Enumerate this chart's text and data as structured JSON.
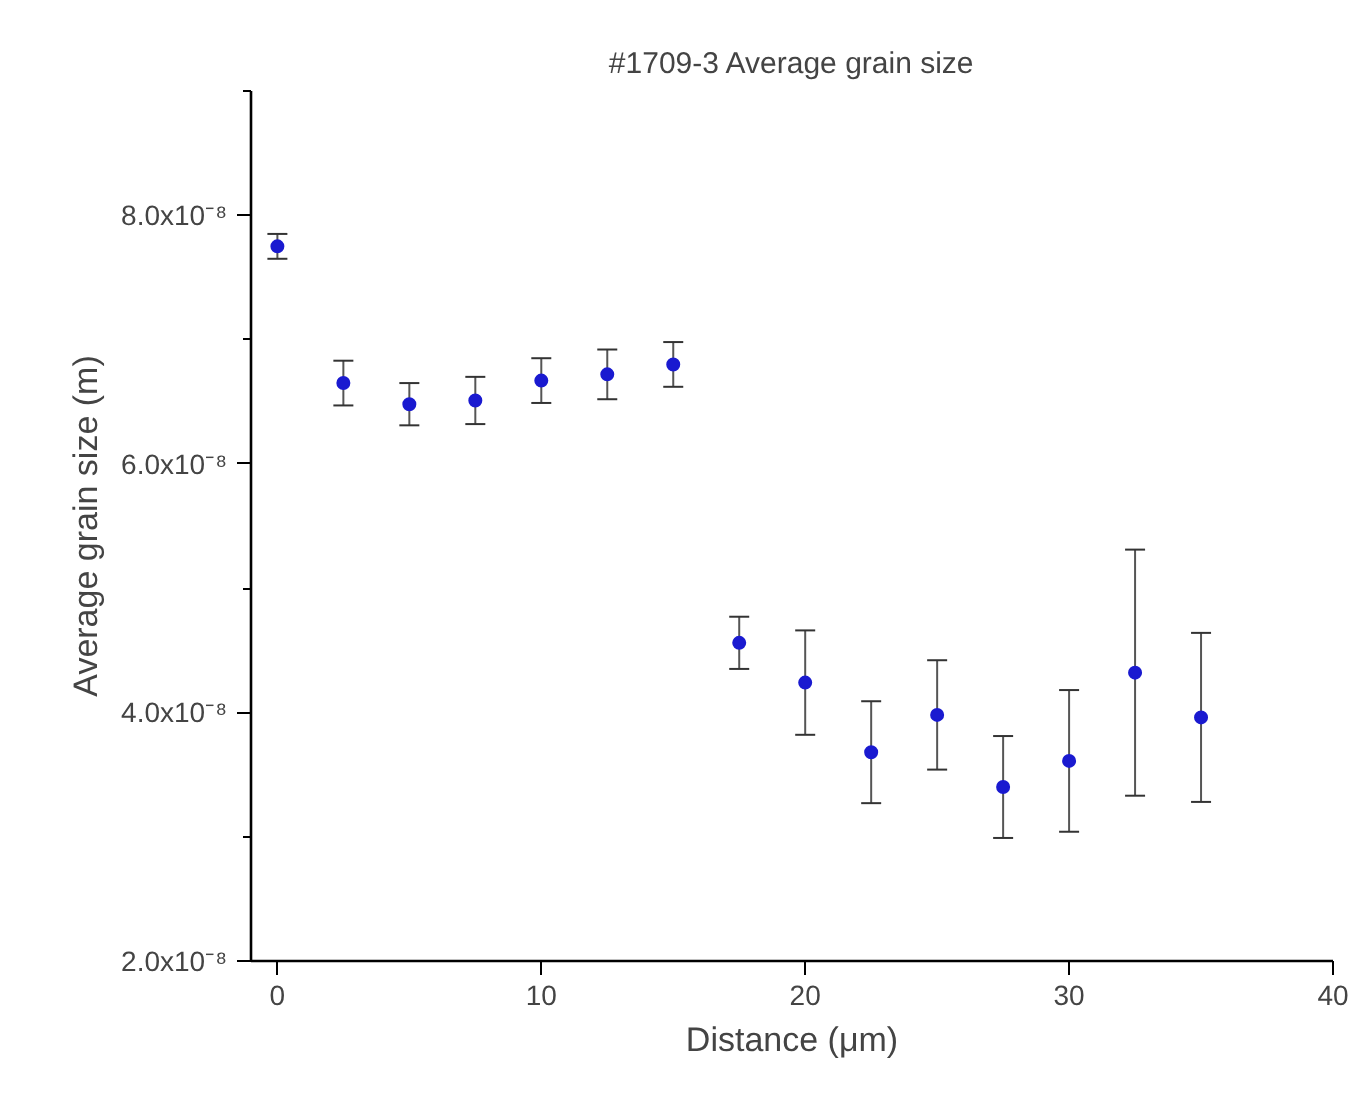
{
  "chart_data": {
    "type": "scatter",
    "title": "#1709-3 Average grain size",
    "xlabel": "Distance (μm)",
    "ylabel": "Average grain size (m)",
    "x": [
      0,
      2.5,
      5,
      7.5,
      10,
      12.5,
      15,
      17.5,
      20,
      22.5,
      25,
      27.5,
      30,
      32.5,
      35
    ],
    "series": [
      {
        "color": "#1a1ad0",
        "values": [
          7.75e-08,
          6.65e-08,
          6.48e-08,
          6.51e-08,
          6.67e-08,
          6.72e-08,
          6.8e-08,
          4.56e-08,
          4.24e-08,
          3.68e-08,
          3.98e-08,
          3.4e-08,
          3.61e-08,
          4.32e-08,
          3.96e-08
        ],
        "errors": [
          1e-09,
          1.8e-09,
          1.7e-09,
          1.9e-09,
          1.8e-09,
          2e-09,
          1.8e-09,
          2.1e-09,
          4.2e-09,
          4.1e-09,
          4.4e-09,
          4.1e-09,
          5.7e-09,
          9.9e-09,
          6.8e-09
        ]
      }
    ],
    "xlim": [
      -1,
      40
    ],
    "xticks": [
      0,
      10,
      20,
      30,
      40
    ],
    "ylim": [
      2e-08,
      9e-08
    ],
    "yticks": [
      {
        "value": 2e-08,
        "label": "2.0x10⁻⁸"
      },
      {
        "value": 3e-08,
        "label": null
      },
      {
        "value": 4e-08,
        "label": "4.0x10⁻⁸"
      },
      {
        "value": 5e-08,
        "label": null
      },
      {
        "value": 6e-08,
        "label": "6.0x10⁻⁸"
      },
      {
        "value": 7e-08,
        "label": null
      },
      {
        "value": 8e-08,
        "label": "8.0x10⁻⁸"
      },
      {
        "value": 9e-08,
        "label": null
      }
    ],
    "grid": false,
    "marker": "circle"
  }
}
